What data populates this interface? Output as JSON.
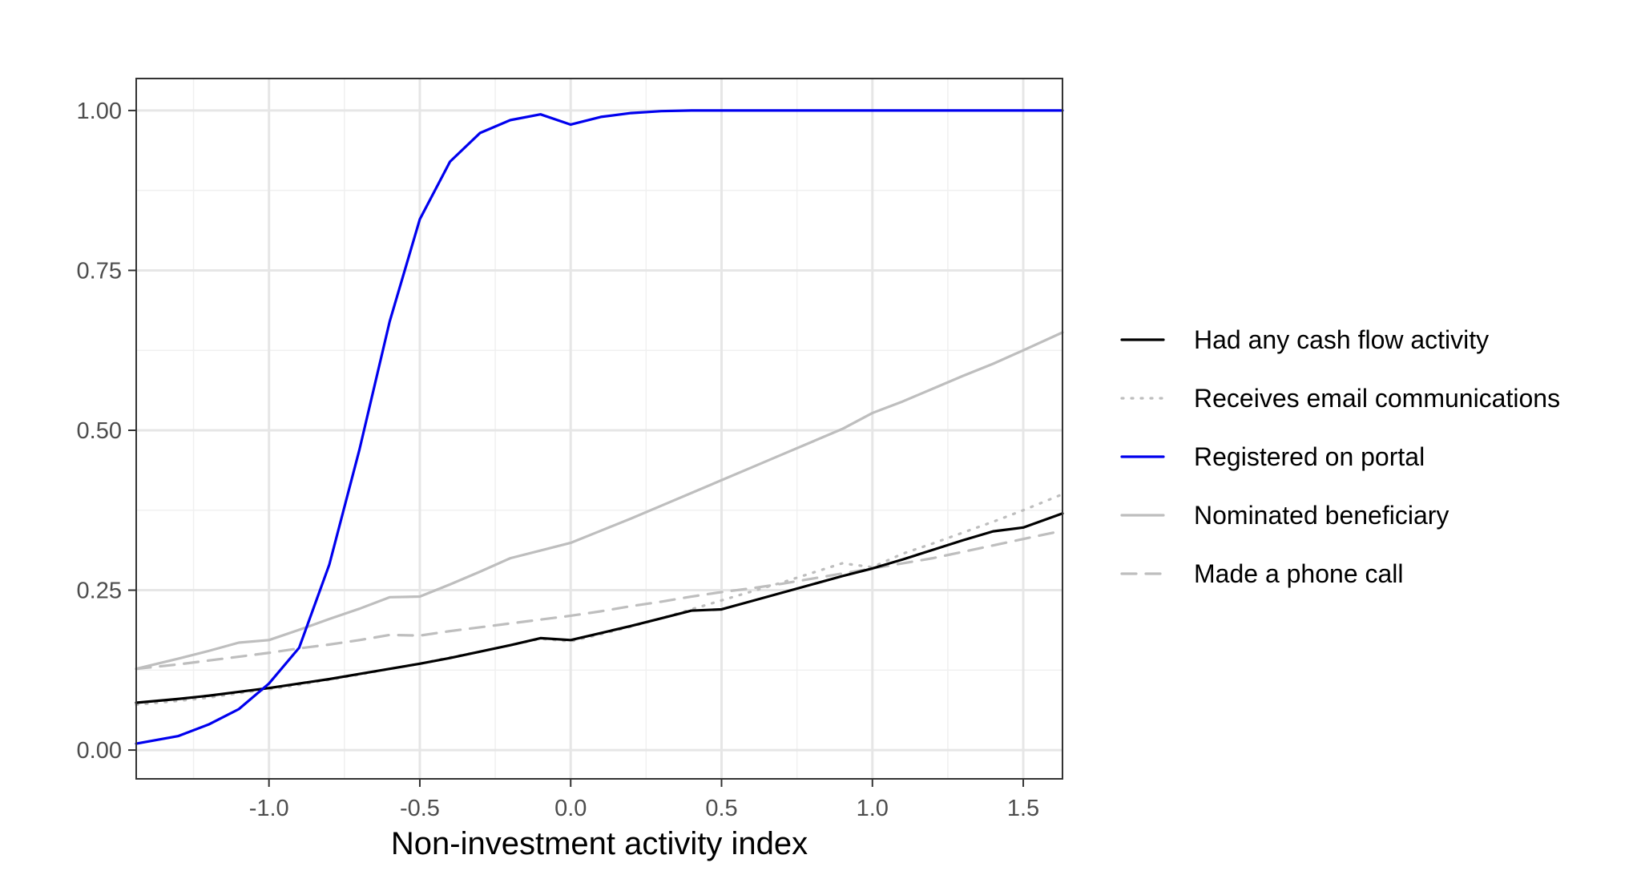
{
  "chart_data": {
    "type": "line",
    "title": "",
    "xlabel": "Non-investment activity index",
    "ylabel": "",
    "xlim": [
      -1.44,
      1.63
    ],
    "ylim": [
      -0.045,
      1.05
    ],
    "x_ticks": [
      -1.0,
      -0.5,
      0.0,
      0.5,
      1.0,
      1.5
    ],
    "x_tick_labels": [
      "-1.0",
      "-0.5",
      "0.0",
      "0.5",
      "1.0",
      "1.5"
    ],
    "y_ticks": [
      0.0,
      0.25,
      0.5,
      0.75,
      1.0
    ],
    "y_tick_labels": [
      "0.00",
      "0.25",
      "0.50",
      "0.75",
      "1.00"
    ],
    "grid": true,
    "legend_position": "right",
    "x": [
      -1.44,
      -1.3,
      -1.2,
      -1.1,
      -1.0,
      -0.9,
      -0.8,
      -0.7,
      -0.6,
      -0.5,
      -0.4,
      -0.3,
      -0.2,
      -0.1,
      0.0,
      0.1,
      0.2,
      0.3,
      0.4,
      0.5,
      0.6,
      0.7,
      0.8,
      0.9,
      1.0,
      1.1,
      1.2,
      1.3,
      1.4,
      1.5,
      1.63
    ],
    "series": [
      {
        "name": "Had any cash flow activity",
        "color": "#000000",
        "dash": "solid",
        "values": [
          0.074,
          0.08,
          0.085,
          0.091,
          0.097,
          0.104,
          0.111,
          0.119,
          0.127,
          0.135,
          0.144,
          0.154,
          0.164,
          0.175,
          0.172,
          0.183,
          0.194,
          0.206,
          0.218,
          0.22,
          0.233,
          0.246,
          0.259,
          0.272,
          0.284,
          0.298,
          0.313,
          0.328,
          0.342,
          0.348,
          0.37
        ]
      },
      {
        "name": "Receives email communications",
        "color": "#bebebe",
        "dash": "dotted",
        "values": [
          0.071,
          0.077,
          0.082,
          0.089,
          0.095,
          0.102,
          0.11,
          0.118,
          0.127,
          0.135,
          0.145,
          0.154,
          0.164,
          0.174,
          0.17,
          0.181,
          0.193,
          0.206,
          0.22,
          0.234,
          0.248,
          0.262,
          0.277,
          0.292,
          0.286,
          0.307,
          0.323,
          0.34,
          0.357,
          0.375,
          0.4
        ]
      },
      {
        "name": "Registered on portal",
        "color": "#0000ee",
        "dash": "solid",
        "values": [
          0.01,
          0.022,
          0.04,
          0.064,
          0.104,
          0.16,
          0.29,
          0.47,
          0.67,
          0.83,
          0.92,
          0.965,
          0.985,
          0.994,
          0.978,
          0.99,
          0.996,
          0.999,
          1.0,
          1.0,
          1.0,
          1.0,
          1.0,
          1.0,
          1.0,
          1.0,
          1.0,
          1.0,
          1.0,
          1.0,
          1.0
        ]
      },
      {
        "name": "Nominated beneficiary",
        "color": "#bebebe",
        "dash": "solid",
        "values": [
          0.127,
          0.143,
          0.155,
          0.168,
          0.172,
          0.188,
          0.205,
          0.221,
          0.239,
          0.24,
          0.259,
          0.279,
          0.3,
          0.312,
          0.324,
          0.343,
          0.362,
          0.382,
          0.402,
          0.422,
          0.442,
          0.462,
          0.482,
          0.502,
          0.527,
          0.545,
          0.565,
          0.585,
          0.604,
          0.625,
          0.653
        ]
      },
      {
        "name": "Made a phone call",
        "color": "#bebebe",
        "dash": "dashed",
        "values": [
          0.127,
          0.134,
          0.14,
          0.146,
          0.152,
          0.159,
          0.165,
          0.172,
          0.18,
          0.179,
          0.186,
          0.192,
          0.198,
          0.204,
          0.21,
          0.217,
          0.225,
          0.232,
          0.24,
          0.247,
          0.253,
          0.26,
          0.268,
          0.276,
          0.284,
          0.292,
          0.3,
          0.31,
          0.32,
          0.33,
          0.343
        ]
      }
    ]
  }
}
